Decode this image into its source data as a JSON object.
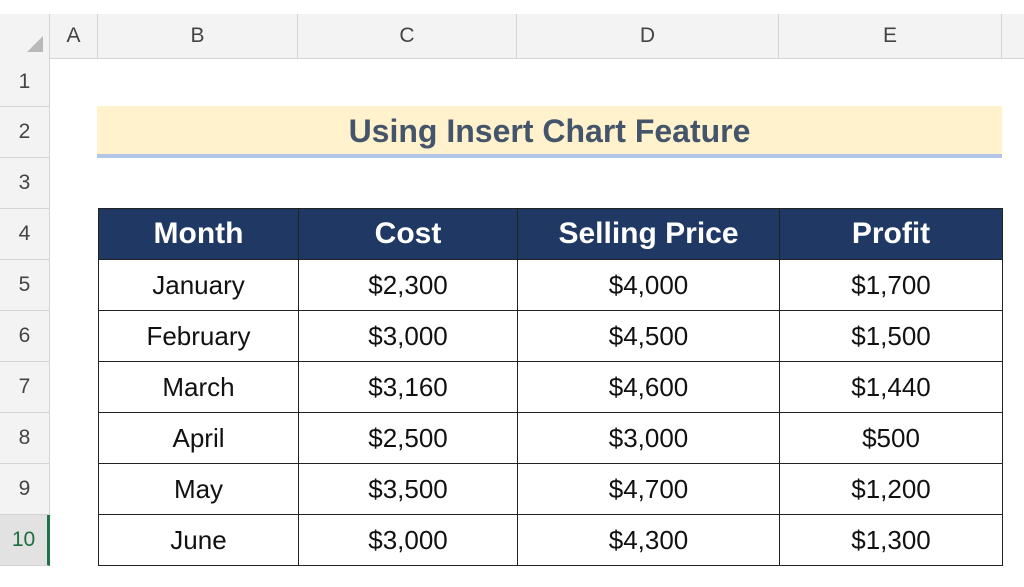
{
  "columns": [
    "A",
    "B",
    "C",
    "D",
    "E"
  ],
  "rows": [
    "1",
    "2",
    "3",
    "4",
    "5",
    "6",
    "7",
    "8",
    "9",
    "10"
  ],
  "title": "Using Insert Chart Feature",
  "table": {
    "headers": [
      "Month",
      "Cost",
      "Selling Price",
      "Profit"
    ],
    "rows": [
      [
        "January",
        "$2,300",
        "$4,000",
        "$1,700"
      ],
      [
        "February",
        "$3,000",
        "$4,500",
        "$1,500"
      ],
      [
        "March",
        "$3,160",
        "$4,600",
        "$1,440"
      ],
      [
        "April",
        "$2,500",
        "$3,000",
        "$500"
      ],
      [
        "May",
        "$3,500",
        "$4,700",
        "$1,200"
      ],
      [
        "June",
        "$3,000",
        "$4,300",
        "$1,300"
      ]
    ]
  },
  "colors": {
    "header_fill": "#203864",
    "title_fill": "#fff2cc",
    "title_text": "#44546a",
    "title_underline": "#b4c6e7",
    "active_row_accent": "#217346"
  }
}
